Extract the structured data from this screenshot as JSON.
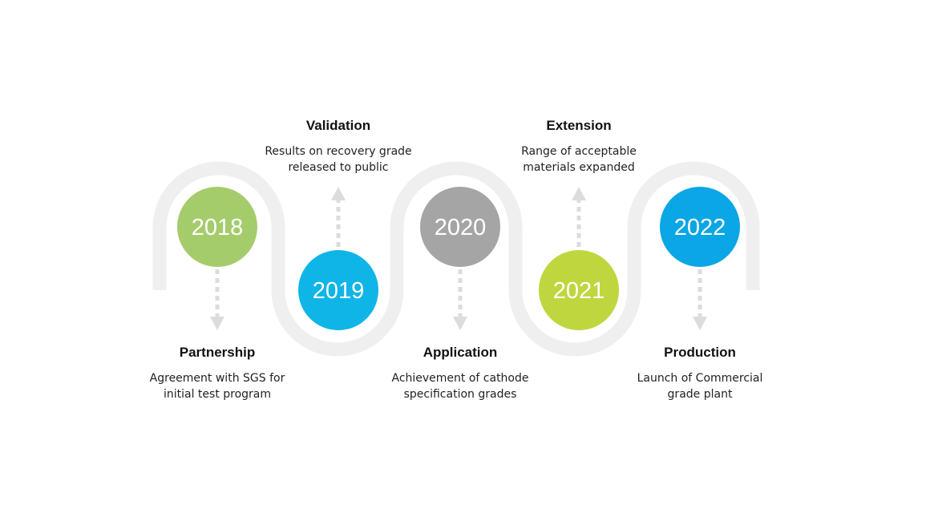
{
  "milestones": [
    {
      "year": "2018",
      "title": "Partnership",
      "desc_line1": "Agreement with SGS for",
      "desc_line2": "initial test program",
      "color": "#a5cc6b"
    },
    {
      "year": "2019",
      "title": "Validation",
      "desc_line1": "Results on recovery grade",
      "desc_line2": "released to public",
      "color": "#0fb5e6"
    },
    {
      "year": "2020",
      "title": "Application",
      "desc_line1": "Achievement of cathode",
      "desc_line2": "specification grades",
      "color": "#a5a5a5"
    },
    {
      "year": "2021",
      "title": "Extension",
      "desc_line1": "Range of acceptable",
      "desc_line2": "materials expanded",
      "color": "#c0d63f"
    },
    {
      "year": "2022",
      "title": "Production",
      "desc_line1": "Launch of Commercial",
      "desc_line2": "grade plant",
      "color": "#0aa6e6"
    }
  ],
  "colors": {
    "track": "#efefef",
    "arrow": "#dcdcdc"
  }
}
